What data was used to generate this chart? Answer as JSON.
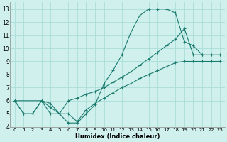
{
  "xlabel": "Humidex (Indice chaleur)",
  "bg_color": "#cff0ec",
  "grid_color": "#aaddd8",
  "line_color": "#1a7a6e",
  "xlim": [
    -0.5,
    23.5
  ],
  "ylim": [
    4,
    13.5
  ],
  "xticks": [
    0,
    1,
    2,
    3,
    4,
    5,
    6,
    7,
    8,
    9,
    10,
    11,
    12,
    13,
    14,
    15,
    16,
    17,
    18,
    19,
    20,
    21,
    22,
    23
  ],
  "yticks": [
    4,
    5,
    6,
    7,
    8,
    9,
    10,
    11,
    12,
    13
  ],
  "series": [
    {
      "x": [
        0,
        1,
        2,
        3,
        4,
        5,
        6,
        7,
        8,
        9,
        10,
        11,
        12,
        13,
        14,
        15,
        16,
        17,
        18,
        19,
        20,
        21
      ],
      "y": [
        6,
        5,
        5,
        6,
        5,
        5,
        4.3,
        4.3,
        5,
        5.7,
        7.3,
        8.3,
        9.5,
        11.2,
        12.5,
        13,
        13,
        13,
        12.7,
        10.5,
        10.2,
        9.5
      ]
    },
    {
      "x": [
        0,
        3,
        4,
        5,
        6,
        7,
        8,
        9,
        10,
        11,
        12,
        13,
        14,
        15,
        16,
        17,
        18,
        19,
        20,
        21,
        22,
        23
      ],
      "y": [
        6,
        6,
        5.8,
        5,
        6,
        6.2,
        6.5,
        6.7,
        7,
        7.4,
        7.8,
        8.2,
        8.7,
        9.2,
        9.7,
        10.2,
        10.7,
        11.5,
        9.5,
        9.5,
        9.5,
        9.5
      ]
    },
    {
      "x": [
        0,
        1,
        2,
        3,
        4,
        5,
        6,
        7,
        8,
        9,
        10,
        11,
        12,
        13,
        14,
        15,
        16,
        17,
        18,
        19,
        20,
        21,
        22,
        23
      ],
      "y": [
        6,
        5,
        5,
        6,
        5.5,
        5,
        5,
        4.4,
        5.3,
        5.8,
        6.2,
        6.6,
        7.0,
        7.3,
        7.7,
        8.0,
        8.3,
        8.6,
        8.9,
        9.0,
        9.0,
        9.0,
        9.0,
        9.0
      ]
    }
  ]
}
